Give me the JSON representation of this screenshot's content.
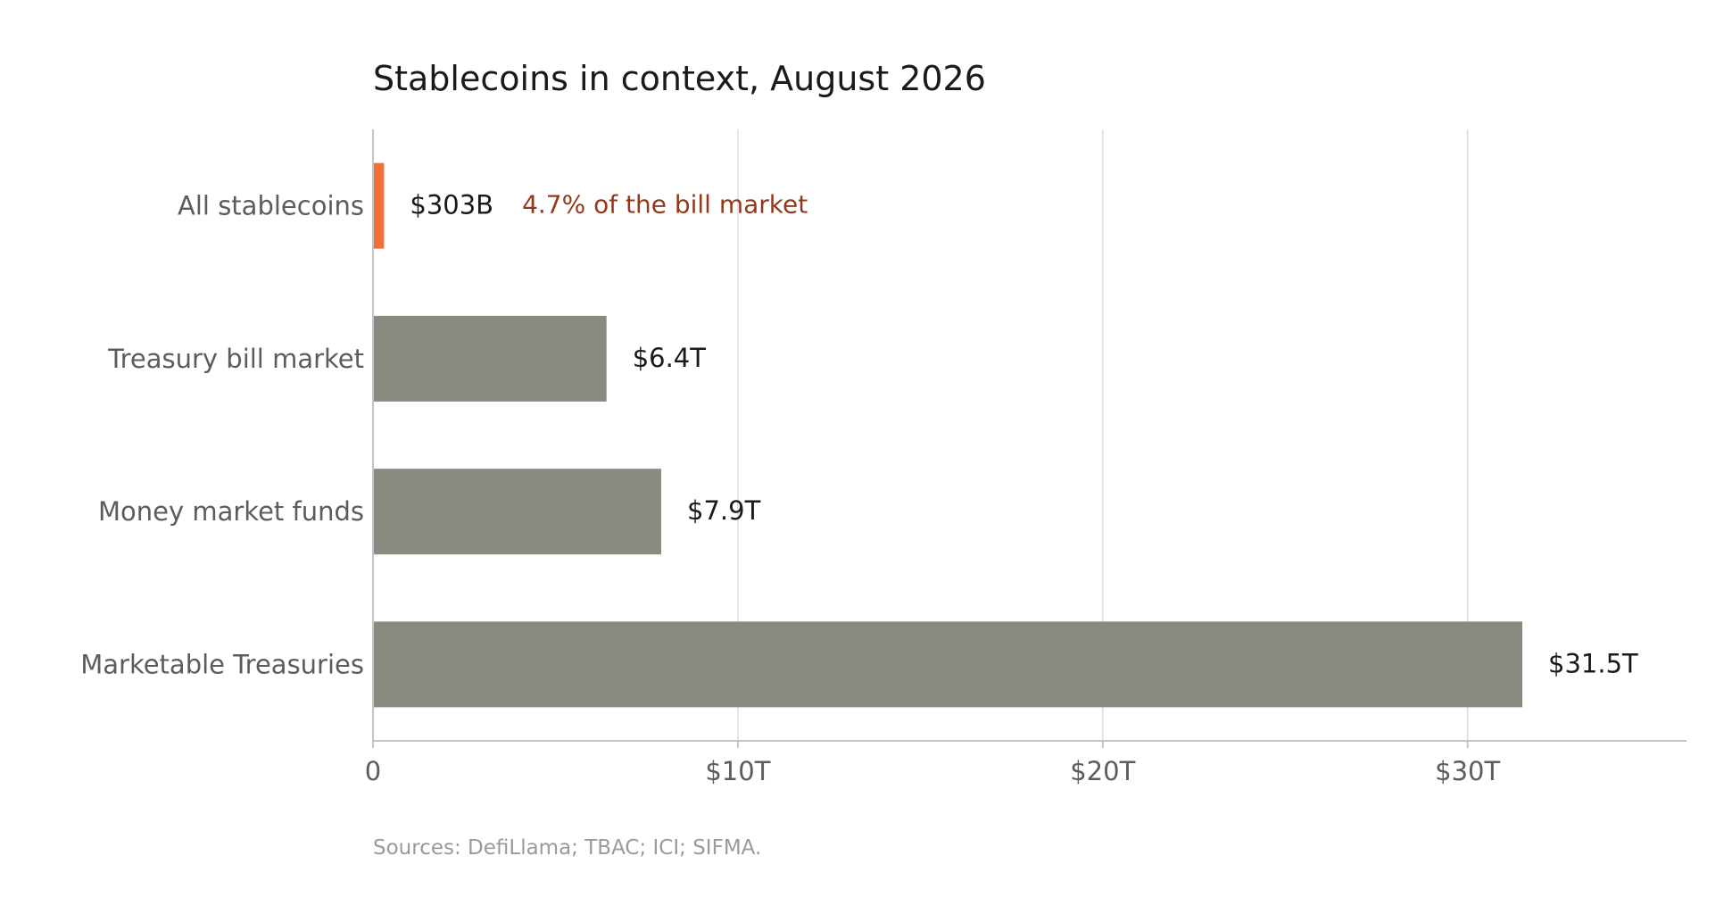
{
  "chart_data": {
    "type": "bar",
    "orientation": "horizontal",
    "title": "Stablecoins in context, August 2026",
    "categories": [
      "All stablecoins",
      "Treasury bill market",
      "Money market funds",
      "Marketable Treasuries"
    ],
    "values": [
      0.303,
      6.4,
      7.9,
      31.5
    ],
    "value_labels": [
      "$303B",
      "$6.4T",
      "$7.9T",
      "$31.5T"
    ],
    "units": "trillions of US dollars",
    "xlim": [
      0,
      36
    ],
    "x_ticks": [
      0,
      10,
      20,
      30
    ],
    "x_tick_labels": [
      "0",
      "$10T",
      "$20T",
      "$30T"
    ],
    "xlabel": "",
    "ylabel": "",
    "grid": "vertical",
    "legend": null,
    "highlight_index": 0,
    "annotation": {
      "category": "All stablecoins",
      "text": "4.7% of the bill market"
    },
    "colors": {
      "highlight": "#f07038",
      "default": "#8a8a80",
      "annotation": "#93391b",
      "grid": "#dddddd",
      "axis": "#c4c4c4"
    },
    "source": "Sources: DefiLlama; TBAC; ICI; SIFMA."
  }
}
